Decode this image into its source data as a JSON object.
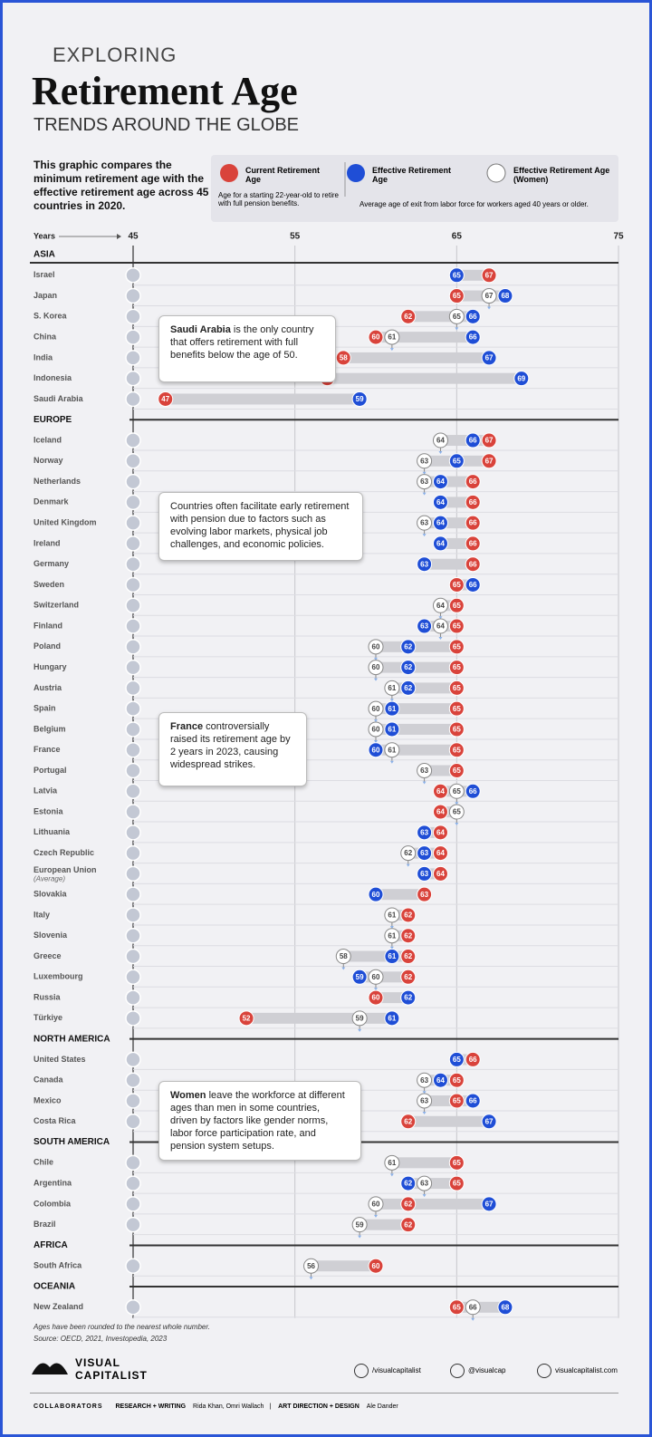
{
  "chart_data": {
    "type": "dumbbell",
    "kicker": "EXPLORING",
    "title": "Retirement Age",
    "subtitle": "TRENDS AROUND THE GLOBE",
    "intro": "This graphic compares the minimum retirement age with the effective retirement age across 45 countries in 2020.",
    "legend": {
      "current": {
        "name": "Current Retirement Age",
        "color": "#d9433b"
      },
      "current_desc": "Age for a starting 22-year-old to retire with full pension benefits.",
      "effective": {
        "name": "Effective Retirement Age",
        "color": "#1f4ed6"
      },
      "women": {
        "name": "Effective Retirement Age (Women)",
        "color": "#ffffff"
      },
      "effective_desc": "Average age of exit from labor force for workers aged 40 years or older."
    },
    "x_label": "Years",
    "xlim": [
      45,
      75
    ],
    "xticks": [
      45,
      55,
      65,
      75
    ],
    "grid": true,
    "regions": [
      {
        "name": "ASIA",
        "countries": [
          {
            "name": "Israel",
            "current": 67,
            "effective": 65,
            "women": null
          },
          {
            "name": "Japan",
            "current": 65,
            "effective": 68,
            "women": 67
          },
          {
            "name": "S. Korea",
            "current": 62,
            "effective": 66,
            "women": 65
          },
          {
            "name": "China",
            "current": 60,
            "effective": 66,
            "women": 61
          },
          {
            "name": "India",
            "current": 58,
            "effective": 67,
            "women": null
          },
          {
            "name": "Indonesia",
            "current": 57,
            "effective": 69,
            "women": null
          },
          {
            "name": "Saudi Arabia",
            "current": 47,
            "effective": 59,
            "women": null
          }
        ]
      },
      {
        "name": "EUROPE",
        "countries": [
          {
            "name": "Iceland",
            "current": 67,
            "effective": 66,
            "women": 64
          },
          {
            "name": "Norway",
            "current": 67,
            "effective": 65,
            "women": 63
          },
          {
            "name": "Netherlands",
            "current": 66,
            "effective": 64,
            "women": 63
          },
          {
            "name": "Denmark",
            "current": 66,
            "effective": 64,
            "women": null
          },
          {
            "name": "United Kingdom",
            "current": 66,
            "effective": 64,
            "women": 63
          },
          {
            "name": "Ireland",
            "current": 66,
            "effective": 64,
            "women": null
          },
          {
            "name": "Germany",
            "current": 66,
            "effective": 63,
            "women": null
          },
          {
            "name": "Sweden",
            "current": 65,
            "effective": 66,
            "women": null
          },
          {
            "name": "Switzerland",
            "current": 65,
            "effective": null,
            "women": 64
          },
          {
            "name": "Finland",
            "current": 65,
            "effective": 63,
            "women": 64
          },
          {
            "name": "Poland",
            "current": 65,
            "effective": 62,
            "women": 60
          },
          {
            "name": "Hungary",
            "current": 65,
            "effective": 62,
            "women": 60
          },
          {
            "name": "Austria",
            "current": 65,
            "effective": 62,
            "women": 61
          },
          {
            "name": "Spain",
            "current": 65,
            "effective": 61,
            "women": 60
          },
          {
            "name": "Belgium",
            "current": 65,
            "effective": 61,
            "women": 60
          },
          {
            "name": "France",
            "current": 65,
            "effective": 60,
            "women": 61
          },
          {
            "name": "Portugal",
            "current": 65,
            "effective": null,
            "women": 63
          },
          {
            "name": "Latvia",
            "current": 64,
            "effective": 66,
            "women": 65
          },
          {
            "name": "Estonia",
            "current": 64,
            "effective": null,
            "women": 65
          },
          {
            "name": "Lithuania",
            "current": 64,
            "effective": 63,
            "women": null
          },
          {
            "name": "Czech Republic",
            "current": 64,
            "effective": 63,
            "women": 62
          },
          {
            "name": "European Union",
            "note": "(Average)",
            "current": 64,
            "effective": 63,
            "women": null
          },
          {
            "name": "Slovakia",
            "current": 63,
            "effective": 60,
            "women": null
          },
          {
            "name": "Italy",
            "current": 62,
            "effective": null,
            "women": 61
          },
          {
            "name": "Slovenia",
            "current": 62,
            "effective": null,
            "women": 61
          },
          {
            "name": "Greece",
            "current": 62,
            "effective": 61,
            "women": 58
          },
          {
            "name": "Luxembourg",
            "current": 62,
            "effective": 59,
            "women": 60
          },
          {
            "name": "Russia",
            "current": 60,
            "effective": 62,
            "women": null
          },
          {
            "name": "Türkiye",
            "current": 52,
            "effective": 61,
            "women": 59
          }
        ]
      },
      {
        "name": "NORTH AMERICA",
        "countries": [
          {
            "name": "United States",
            "current": 66,
            "effective": 65,
            "women": null
          },
          {
            "name": "Canada",
            "current": 65,
            "effective": 64,
            "women": 63
          },
          {
            "name": "Mexico",
            "current": 65,
            "effective": 66,
            "women": 63
          },
          {
            "name": "Costa Rica",
            "current": 62,
            "effective": 67,
            "women": null
          }
        ]
      },
      {
        "name": "SOUTH AMERICA",
        "countries": [
          {
            "name": "Chile",
            "current": 65,
            "effective": null,
            "women": 61
          },
          {
            "name": "Argentina",
            "current": 65,
            "effective": 62,
            "women": 63
          },
          {
            "name": "Colombia",
            "current": 62,
            "effective": 67,
            "women": 60
          },
          {
            "name": "Brazil",
            "current": 62,
            "effective": null,
            "women": 59
          }
        ]
      },
      {
        "name": "AFRICA",
        "countries": [
          {
            "name": "South Africa",
            "current": 60,
            "effective": null,
            "women": 56
          }
        ]
      },
      {
        "name": "OCEANIA",
        "countries": [
          {
            "name": "New Zealand",
            "current": 65,
            "effective": 68,
            "women": 66
          }
        ]
      }
    ],
    "annotations": [
      {
        "bold": "Saudi Arabia",
        "text": " is the only country that offers retirement with full benefits below the age of 50."
      },
      {
        "text": "Countries often facilitate early retirement with pension due to factors such as evolving labor markets, physical job challenges, and economic policies."
      },
      {
        "bold": "France",
        "text": " controversially raised its retirement age by 2 years in 2023, causing widespread strikes."
      },
      {
        "bold": "Women",
        "text": " leave the workforce at different ages than men in some countries, driven by factors like gender norms, labor force participation rate, and pension system setups."
      }
    ],
    "footnote": "Ages have been rounded to the nearest whole number.",
    "source": "Source: OECD, 2021, Investopedia, 2023",
    "brand": {
      "line1": "VISUAL",
      "line2": "CAPITALIST"
    },
    "social": [
      "/visualcapitalist",
      "@visualcap",
      "visualcapitalist.com"
    ],
    "credits": {
      "label": "COLLABORATORS",
      "role1": "RESEARCH + WRITING",
      "names1": "Rida Khan, Omri Wallach",
      "role2": "ART DIRECTION + DESIGN",
      "names2": "Ale Dander"
    }
  }
}
